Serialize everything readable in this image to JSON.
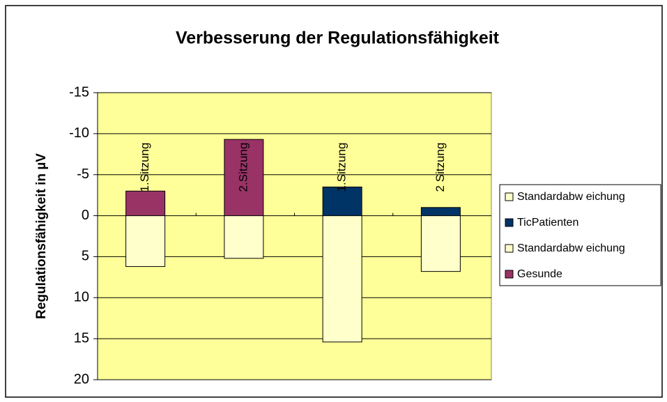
{
  "chart_data": {
    "type": "bar",
    "title": "Verbesserung der Regulationsfähigkeit",
    "y_label": "Regulationsfähigkeit in µV",
    "categories": [
      null,
      null,
      null,
      null
    ],
    "annotations": [
      "1.Sitzung",
      "2.Sitzung",
      "1.Sitzung",
      "2 Sitzung"
    ],
    "series": [
      {
        "name": "Standardabw eichung",
        "color": "#ffffcc",
        "values": [
          null,
          null,
          15.4,
          6.8
        ]
      },
      {
        "name": "TicPatienten",
        "color": "#003366",
        "values": [
          null,
          null,
          -3.5,
          -1
        ]
      },
      {
        "name": "Standardabw eichung",
        "color": "#ffffcc",
        "values": [
          6.2,
          5.2,
          null,
          null
        ]
      },
      {
        "name": "Gesunde",
        "color": "#993366",
        "values": [
          -3,
          -9.3,
          null,
          null
        ]
      }
    ],
    "ylim": [
      -15,
      20
    ],
    "y_inverted": true,
    "yticks": [
      -15,
      -10,
      -5,
      0,
      5,
      10,
      15,
      20
    ],
    "grid": true,
    "plot_background": "#ffff99",
    "legend": "right"
  }
}
